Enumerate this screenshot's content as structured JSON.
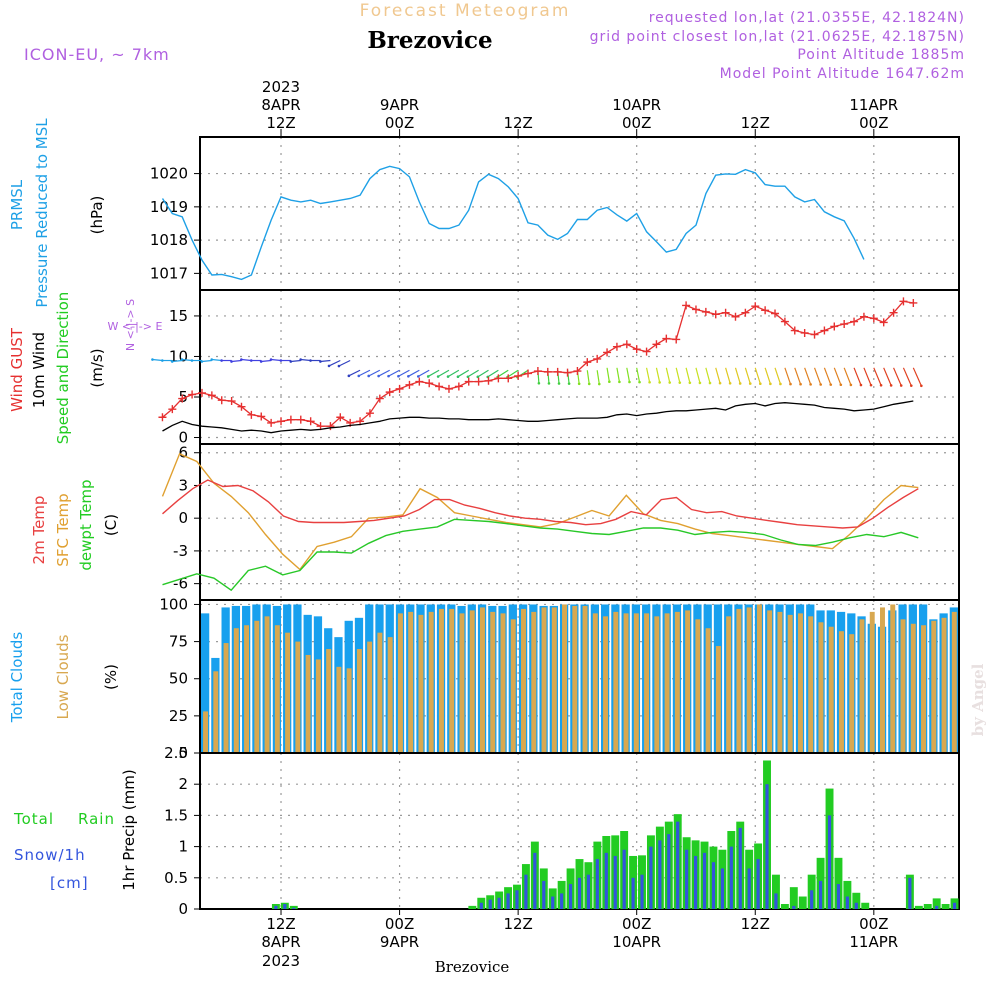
{
  "header": {
    "app_title": "Forecast Meteogram",
    "station": "Brezovice",
    "model": "ICON-EU, ~ 7km",
    "requested": "requested lon,lat (21.0355E, 42.1824N)",
    "grid_point": "grid point closest lon,lat (21.0625E, 42.1875N)",
    "point_altitude": "Point Altitude 1885m",
    "model_altitude": "Model Point Altitude 1647.62m",
    "credit": "by Angel",
    "footer_station": "Brezovice"
  },
  "colors": {
    "pressure": "#1ea0e6",
    "gust": "#e63030",
    "wind10m": "#000000",
    "temp2m": "#e84040",
    "sfc_temp": "#e0a030",
    "dewpoint": "#28c828",
    "total_clouds": "#18a0ee",
    "low_clouds": "#d8a850",
    "rain": "#22cc22",
    "snow": "#3355dd",
    "header_purple": "#b060e0",
    "title_orange": "#f0c890"
  },
  "time_axis": {
    "top": [
      {
        "h": 12,
        "l1": "2023",
        "l2": "8APR",
        "l3": "12Z"
      },
      {
        "h": 24,
        "l1": "",
        "l2": "9APR",
        "l3": "00Z"
      },
      {
        "h": 36,
        "l1": "",
        "l2": "",
        "l3": "12Z"
      },
      {
        "h": 48,
        "l1": "",
        "l2": "10APR",
        "l3": "00Z"
      },
      {
        "h": 60,
        "l1": "",
        "l2": "",
        "l3": "12Z"
      },
      {
        "h": 72,
        "l1": "",
        "l2": "11APR",
        "l3": "00Z"
      }
    ],
    "bottom": [
      {
        "h": 12,
        "l1": "12Z",
        "l2": "8APR",
        "l3": "2023"
      },
      {
        "h": 24,
        "l1": "00Z",
        "l2": "9APR",
        "l3": ""
      },
      {
        "h": 36,
        "l1": "12Z",
        "l2": "",
        "l3": ""
      },
      {
        "h": 48,
        "l1": "00Z",
        "l2": "10APR",
        "l3": ""
      },
      {
        "h": 60,
        "l1": "12Z",
        "l2": "",
        "l3": ""
      },
      {
        "h": 72,
        "l1": "00Z",
        "l2": "11APR",
        "l3": ""
      }
    ]
  },
  "chart_data": [
    {
      "type": "line",
      "panel": "pressure",
      "labels": {
        "l1": "PRMSL",
        "l2": "Pressure Reduced to MSL",
        "unit": "(hPa)"
      },
      "yticks": [
        1017,
        1018,
        1019,
        1020
      ],
      "ylim": [
        1016.5,
        1021.1
      ],
      "x_start": 0,
      "x_step": 1,
      "series": [
        {
          "name": "PRMSL",
          "values": [
            1019.25,
            1018.8,
            1018.7,
            1018.0,
            1017.4,
            1016.95,
            1016.97,
            1016.9,
            1016.82,
            1016.95,
            1017.8,
            1018.6,
            1019.3,
            1019.2,
            1019.15,
            1019.2,
            1019.1,
            1019.15,
            1019.2,
            1019.25,
            1019.35,
            1019.85,
            1020.12,
            1020.22,
            1020.15,
            1019.9,
            1019.15,
            1018.5,
            1018.35,
            1018.35,
            1018.45,
            1018.9,
            1019.75,
            1019.98,
            1019.85,
            1019.6,
            1019.25,
            1018.52,
            1018.45,
            1018.15,
            1018.02,
            1018.2,
            1018.62,
            1018.62,
            1018.9,
            1018.98,
            1018.76,
            1018.57,
            1018.8,
            1018.25,
            1017.95,
            1017.64,
            1017.72,
            1018.2,
            1018.45,
            1019.4,
            1019.95,
            1019.99,
            1019.98,
            1020.12,
            1020.02,
            1019.67,
            1019.62,
            1019.62,
            1019.3,
            1019.15,
            1019.22,
            1018.85,
            1018.7,
            1018.58,
            1018.05,
            1017.42
          ]
        }
      ]
    },
    {
      "type": "line",
      "panel": "wind",
      "labels": {
        "l1": "Wind GUST",
        "l2": "10m Wind",
        "l3": "Speed and Direction",
        "unit": "(m/s)",
        "compass_ns": "N <-|-> S",
        "compass_we": "W <-|-> E"
      },
      "yticks": [
        0,
        5,
        10,
        15
      ],
      "ylim": [
        -0.8,
        18.2
      ],
      "x_start": 0,
      "x_step": 1,
      "series": [
        {
          "name": "Wind GUST",
          "values": [
            2.5,
            3.5,
            4.8,
            5.3,
            5.5,
            5.2,
            4.6,
            4.5,
            3.8,
            2.8,
            2.6,
            1.8,
            2.0,
            2.2,
            2.2,
            2.0,
            1.4,
            1.4,
            2.5,
            1.8,
            2.0,
            3.0,
            4.8,
            5.6,
            6.0,
            6.5,
            6.9,
            6.7,
            6.3,
            6.0,
            6.3,
            6.9,
            6.9,
            7.0,
            7.3,
            7.3,
            7.6,
            7.9,
            8.2,
            8.1,
            8.1,
            8.0,
            8.2,
            9.3,
            9.7,
            10.5,
            11.2,
            11.5,
            10.9,
            10.6,
            11.5,
            12.2,
            12.1,
            16.3,
            15.8,
            15.5,
            15.2,
            15.4,
            14.9,
            15.4,
            16.2,
            15.7,
            15.3,
            14.3,
            13.2,
            12.9,
            12.7,
            13.2,
            13.7,
            14.0,
            14.3,
            14.9,
            14.7,
            14.2,
            15.4,
            16.8,
            16.6
          ]
        },
        {
          "name": "10m Wind",
          "values": [
            0.8,
            1.5,
            2.0,
            1.6,
            1.4,
            1.3,
            1.2,
            1.0,
            0.8,
            0.9,
            0.8,
            0.6,
            0.8,
            0.9,
            1.0,
            0.9,
            1.0,
            1.2,
            1.3,
            1.5,
            1.6,
            1.8,
            2.0,
            2.3,
            2.4,
            2.5,
            2.5,
            2.4,
            2.4,
            2.3,
            2.3,
            2.2,
            2.2,
            2.2,
            2.3,
            2.2,
            2.1,
            2.0,
            2.0,
            2.1,
            2.2,
            2.3,
            2.4,
            2.4,
            2.4,
            2.5,
            2.8,
            2.9,
            2.7,
            2.9,
            3.0,
            3.2,
            3.3,
            3.3,
            3.4,
            3.5,
            3.6,
            3.4,
            3.9,
            4.1,
            4.2,
            3.9,
            4.2,
            4.3,
            4.2,
            4.1,
            4.0,
            3.7,
            3.6,
            3.5,
            3.3,
            3.4,
            3.5,
            3.8,
            4.1,
            4.3,
            4.5
          ]
        }
      ]
    },
    {
      "type": "line",
      "panel": "temperature",
      "labels": {
        "l1": "2m Temp",
        "l2": "SFC Temp",
        "l3": "dewpt Temp",
        "unit": "(C)"
      },
      "yticks": [
        -6,
        -3,
        0,
        3,
        6
      ],
      "ylim": [
        -7.5,
        6.8
      ],
      "x_start": 0,
      "x_step": 1,
      "series": [
        {
          "name": "2m Temp",
          "values": [
            0.4,
            1.6,
            2.7,
            3.5,
            2.9,
            3.0,
            2.5,
            1.5,
            0.2,
            -0.3,
            -0.4,
            -0.4,
            -0.4,
            -0.3,
            -0.2,
            0.0,
            0.2,
            0.8,
            1.7,
            1.7,
            1.2,
            0.9,
            0.5,
            0.2,
            0.0,
            -0.1,
            -0.3,
            -0.4,
            -0.6,
            -0.5,
            -0.1,
            0.6,
            0.3,
            1.7,
            1.9,
            0.8,
            0.5,
            0.6,
            0.2,
            0.0,
            -0.2,
            -0.4,
            -0.6,
            -0.7,
            -0.8,
            -0.9,
            -0.8,
            0.0,
            1.0,
            1.9,
            2.7
          ]
        },
        {
          "name": "SFC Temp",
          "values": [
            2.0,
            5.9,
            5.2,
            3.2,
            2.0,
            0.5,
            -1.5,
            -3.3,
            -4.7,
            -2.6,
            -2.2,
            -1.7,
            0.0,
            0.1,
            0.3,
            2.7,
            1.9,
            0.5,
            0.2,
            -0.1,
            -0.4,
            -0.6,
            -0.8,
            -0.5,
            0.1,
            0.7,
            0.2,
            2.1,
            0.4,
            -0.2,
            -0.5,
            -1.0,
            -1.4,
            -1.6,
            -1.8,
            -2.0,
            -2.2,
            -2.4,
            -2.6,
            -2.8,
            -1.5,
            0.0,
            1.7,
            3.0,
            2.8
          ]
        },
        {
          "name": "dewpt Temp",
          "values": [
            -6.1,
            -5.6,
            -5.1,
            -5.5,
            -6.6,
            -4.8,
            -4.4,
            -5.2,
            -4.8,
            -3.1,
            -3.1,
            -3.2,
            -2.3,
            -1.6,
            -1.2,
            -1.0,
            -0.8,
            -0.1,
            -0.2,
            -0.3,
            -0.5,
            -0.7,
            -0.9,
            -1.0,
            -1.2,
            -1.4,
            -1.5,
            -1.2,
            -0.9,
            -0.9,
            -1.1,
            -1.5,
            -1.3,
            -1.2,
            -1.3,
            -1.5,
            -2.0,
            -2.4,
            -2.5,
            -2.2,
            -1.8,
            -1.5,
            -1.7,
            -1.3,
            -1.8
          ]
        }
      ]
    },
    {
      "type": "bar",
      "panel": "clouds",
      "labels": {
        "l1": "Total Clouds",
        "l2": "Low Clouds",
        "unit": "(%)"
      },
      "yticks": [
        0,
        25,
        50,
        75,
        100
      ],
      "ylim": [
        0,
        103
      ],
      "x_start": 0,
      "x_step": 1,
      "series": [
        {
          "name": "Total Clouds",
          "values": [
            94,
            64,
            98,
            99,
            99,
            100,
            100,
            99,
            100,
            100,
            93,
            92,
            84,
            78,
            89,
            91,
            100,
            100,
            100,
            100,
            100,
            100,
            100,
            100,
            100,
            99,
            100,
            100,
            99,
            99,
            100,
            100,
            100,
            99,
            99,
            100,
            100,
            100,
            100,
            100,
            100,
            100,
            100,
            100,
            100,
            100,
            100,
            100,
            100,
            100,
            100,
            100,
            100,
            100,
            100,
            100,
            100,
            100,
            100,
            100,
            96,
            96,
            95,
            94,
            92,
            87,
            85,
            96,
            100,
            100,
            100,
            90,
            94,
            98
          ]
        },
        {
          "name": "Low Clouds",
          "values": [
            28,
            55,
            74,
            84,
            86,
            89,
            92,
            86,
            81,
            75,
            66,
            63,
            70,
            58,
            57,
            70,
            75,
            81,
            78,
            94,
            95,
            93,
            95,
            97,
            97,
            94,
            96,
            98,
            95,
            94,
            90,
            97,
            95,
            98,
            98,
            100,
            99,
            99,
            94,
            92,
            95,
            94,
            94,
            94,
            92,
            94,
            95,
            96,
            90,
            84,
            72,
            92,
            97,
            98,
            100,
            96,
            95,
            93,
            94,
            92,
            88,
            85,
            82,
            80,
            90,
            95,
            98,
            100,
            90,
            87,
            86,
            89,
            91,
            95
          ]
        }
      ]
    },
    {
      "type": "bar",
      "panel": "precip",
      "labels": {
        "l1": "Total",
        "l2": "Rain",
        "l3": "Snow/1h",
        "l4": "[cm]",
        "unit": "1hr Precip (mm)"
      },
      "yticks": [
        0,
        0.5,
        1,
        1.5,
        2,
        2.5
      ],
      "ylim": [
        0,
        2.5
      ],
      "x_start": 0,
      "x_step": 1,
      "series": [
        {
          "name": "Total Rain",
          "values": [
            0,
            0,
            0,
            0,
            0,
            0,
            0,
            0,
            0.08,
            0.1,
            0.05,
            0,
            0,
            0,
            0,
            0,
            0,
            0,
            0,
            0,
            0,
            0,
            0,
            0,
            0,
            0,
            0,
            0,
            0,
            0,
            0.05,
            0.18,
            0.22,
            0.28,
            0.35,
            0.39,
            0.72,
            1.08,
            0.65,
            0.33,
            0.45,
            0.65,
            0.8,
            0.75,
            1.08,
            1.17,
            1.18,
            1.25,
            0.85,
            0.86,
            1.18,
            1.32,
            1.4,
            1.52,
            1.15,
            1.1,
            1.08,
            1.0,
            0.95,
            1.25,
            1.4,
            0.95,
            1.05,
            2.38,
            0.55,
            0.08,
            0.35,
            0.2,
            0.55,
            0.82,
            1.93,
            0.82,
            0.45,
            0.26,
            0.1,
            0,
            0,
            0,
            0,
            0.55,
            0.05,
            0.08,
            0.17,
            0.08,
            0.17
          ]
        },
        {
          "name": "Snow/1h",
          "values": [
            0,
            0,
            0,
            0,
            0,
            0,
            0,
            0,
            0.05,
            0.08,
            0.02,
            0,
            0,
            0,
            0,
            0,
            0,
            0,
            0,
            0,
            0,
            0,
            0,
            0,
            0,
            0,
            0,
            0,
            0,
            0,
            0,
            0.1,
            0.15,
            0.18,
            0.25,
            0.3,
            0.55,
            0.9,
            0.45,
            0.2,
            0.25,
            0.4,
            0.5,
            0.55,
            0.8,
            0.9,
            0.85,
            0.95,
            0.5,
            0.55,
            1.0,
            1.1,
            1.2,
            1.4,
            0.95,
            0.85,
            0.9,
            0.75,
            0.65,
            1.0,
            1.3,
            0.65,
            0.8,
            2.0,
            0.25,
            0,
            0.05,
            0,
            0.3,
            0.45,
            1.5,
            0.4,
            0.2,
            0.1,
            0,
            0,
            0,
            0,
            0,
            0.5,
            0,
            0,
            0.05,
            0,
            0.1
          ]
        }
      ]
    }
  ]
}
